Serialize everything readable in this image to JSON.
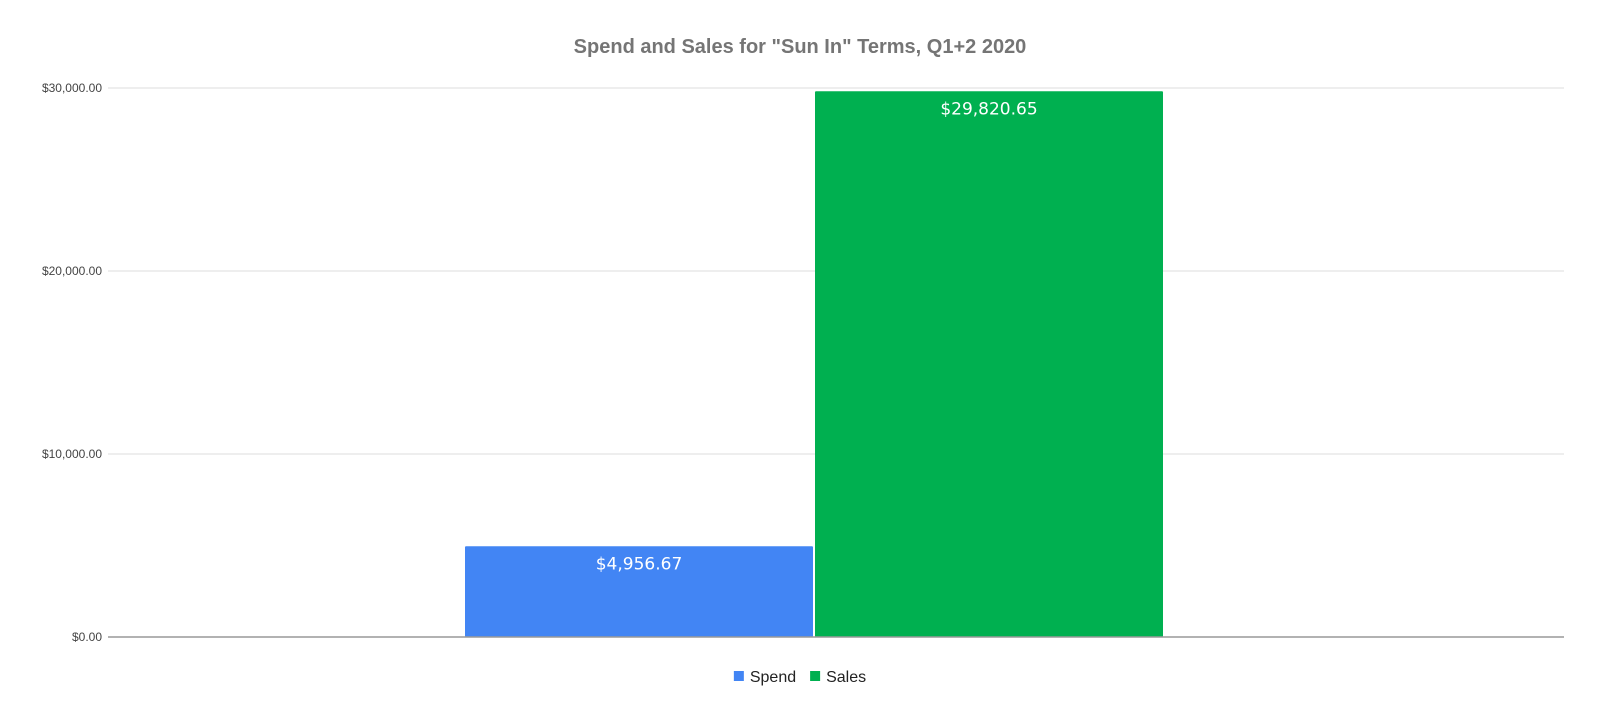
{
  "chart_data": {
    "type": "bar",
    "title": "Spend and Sales for \"Sun In\" Terms, Q1+2 2020",
    "xlabel": "",
    "ylabel": "",
    "categories": [
      ""
    ],
    "series": [
      {
        "name": "Spend",
        "values": [
          4956.67
        ],
        "labels": [
          "$4,956.67"
        ],
        "color": "#4285F4"
      },
      {
        "name": "Sales",
        "values": [
          29820.65
        ],
        "labels": [
          "$29,820.65"
        ],
        "color": "#00B050"
      }
    ],
    "ylim": [
      0,
      30000
    ],
    "yticks": [
      0,
      10000,
      20000,
      30000
    ],
    "ytick_labels": [
      "$0.00",
      "$10,000.00",
      "$20,000.00",
      "$30,000.00"
    ],
    "grid": true,
    "legend_position": "bottom",
    "colors": {
      "title": "#757575",
      "tick_label": "#444444",
      "gridline": "#dddddd",
      "baseline": "#999999",
      "data_label": "#ffffff",
      "legend_text": "#222222"
    }
  }
}
